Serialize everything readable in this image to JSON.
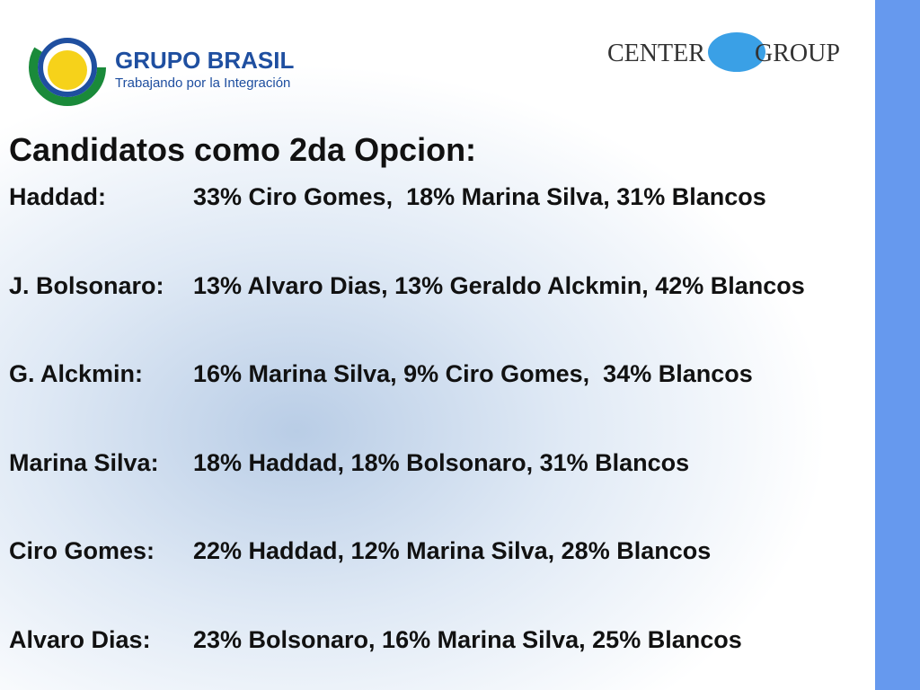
{
  "logos": {
    "left_title": "GRUPO BRASIL",
    "left_subtitle": "Trabajando por la Integración",
    "right_left": "CENTER",
    "right_right": "GROUP"
  },
  "title": "Candidatos como 2da Opcion:",
  "rows": [
    [
      "Haddad:",
      "33% Ciro Gomes,  18% Marina Silva, 31% Blancos"
    ],
    [
      "J. Bolsonaro:",
      "13% Alvaro Dias, 13% Geraldo Alckmin, 42% Blancos"
    ],
    [
      "G. Alckmin:",
      "16% Marina Silva, 9% Ciro Gomes,  34% Blancos"
    ],
    [
      "Marina Silva:",
      "18% Haddad, 18% Bolsonaro, 31% Blancos"
    ],
    [
      "Ciro Gomes:",
      "22% Haddad, 12% Marina Silva, 28% Blancos"
    ],
    [
      "Alvaro Dias:",
      "23% Bolsonaro, 16% Marina Silva, 25% Blancos"
    ]
  ]
}
